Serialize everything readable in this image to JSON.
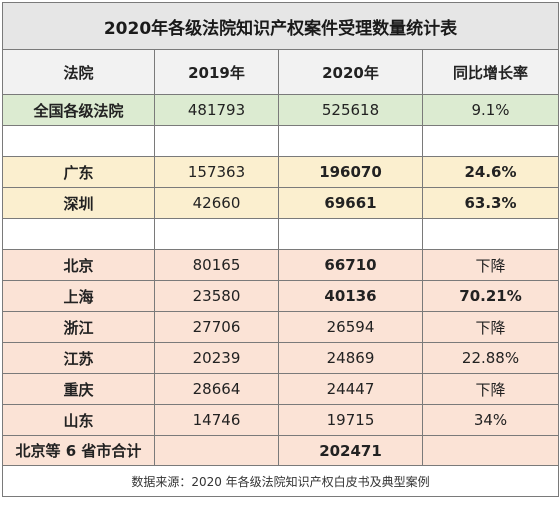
{
  "title": "2020年各级法院知识产权案件受理数量统计表",
  "headers": [
    "法院",
    "2019年",
    "2020年",
    "同比增长率"
  ],
  "national": {
    "name": "全国各级法院",
    "y2019": "481793",
    "y2020": "525618",
    "rate": "9.1%"
  },
  "guangdong_group": [
    {
      "name": "广东",
      "y2019": "157363",
      "y2020": "196070",
      "rate": "24.6%"
    },
    {
      "name": "深圳",
      "y2019": "42660",
      "y2020": "69661",
      "rate": "63.3%"
    }
  ],
  "six_group": [
    {
      "name": "北京",
      "y2019": "80165",
      "y2020": "66710",
      "rate": "下降"
    },
    {
      "name": "上海",
      "y2019": "23580",
      "y2020": "40136",
      "rate": "70.21%"
    },
    {
      "name": "浙江",
      "y2019": "27706",
      "y2020": "26594",
      "rate": "下降"
    },
    {
      "name": "江苏",
      "y2019": "20239",
      "y2020": "24869",
      "rate": "22.88%"
    },
    {
      "name": "重庆",
      "y2019": "28664",
      "y2020": "24447",
      "rate": "下降"
    },
    {
      "name": "山东",
      "y2019": "14746",
      "y2020": "19715",
      "rate": "34%"
    }
  ],
  "total": {
    "name": "北京等 6 省市合计",
    "y2020": "202471"
  },
  "source": "数据来源：2020 年各级法院知识产权白皮书及典型案例",
  "colors": {
    "national_bg": "#dcebd1",
    "guangdong_bg": "#fbefcf",
    "six_bg": "#fbe3d6",
    "title_bg": "#e6e6e6"
  }
}
